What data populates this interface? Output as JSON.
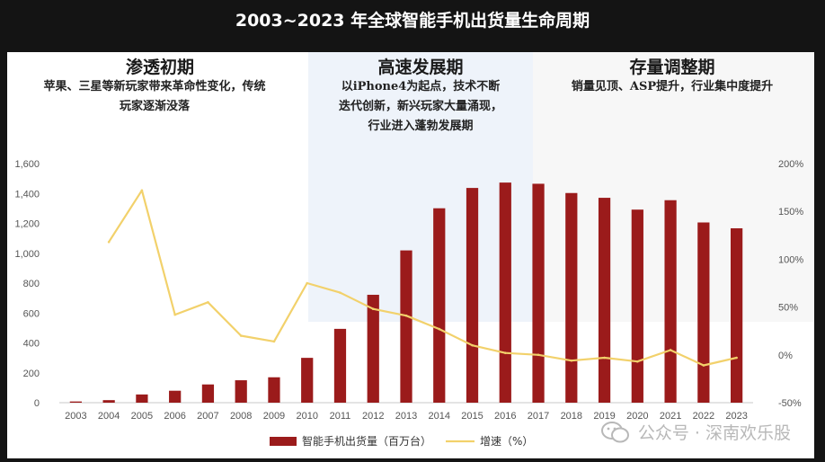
{
  "title": "2003~2023 年全球智能手机出货量生命周期",
  "phases": [
    {
      "title": "渗透初期",
      "desc": [
        "苹果、三星等新玩家带来革命性变化，传统",
        "玩家逐渐没落"
      ]
    },
    {
      "title": "高速发展期",
      "desc": [
        "以iPhone4为起点，技术不断",
        "迭代创新，新兴玩家大量涌现，",
        "行业进入蓬勃发展期"
      ]
    },
    {
      "title": "存量调整期",
      "desc": [
        "销量见顶、ASP提升，行业集中度提升"
      ]
    }
  ],
  "watermark": "公众号 · 深南欢乐股",
  "colors": {
    "bar": "#9b1b1b",
    "line": "#f2d16b",
    "phase_mid": "#eef3fa",
    "phase_right": "#f6f6f6"
  },
  "chart_data": {
    "type": "bar",
    "categories": [
      "2003",
      "2004",
      "2005",
      "2006",
      "2007",
      "2008",
      "2009",
      "2010",
      "2011",
      "2012",
      "2013",
      "2014",
      "2015",
      "2016",
      "2017",
      "2018",
      "2019",
      "2020",
      "2021",
      "2022",
      "2023"
    ],
    "series": [
      {
        "name": "智能手机出货量（百万台）",
        "type": "bar",
        "axis": "left",
        "values": [
          8,
          17,
          55,
          80,
          122,
          150,
          170,
          300,
          494,
          722,
          1019,
          1301,
          1437,
          1473,
          1465,
          1403,
          1371,
          1292,
          1355,
          1206,
          1167
        ]
      },
      {
        "name": "增速（%）",
        "type": "line",
        "axis": "right",
        "values": [
          null,
          118,
          172,
          42,
          55,
          20,
          14,
          75,
          65,
          48,
          41,
          27,
          10,
          2,
          0,
          -6,
          -3,
          -7,
          5,
          -11,
          -3
        ]
      }
    ],
    "y_left": {
      "min": 0,
      "max": 1600,
      "ticks": [
        "0",
        "200",
        "400",
        "600",
        "800",
        "1,000",
        "1,200",
        "1,400",
        "1,600"
      ]
    },
    "y_right": {
      "min": -50,
      "max": 200,
      "ticks": [
        "-50%",
        "0%",
        "50%",
        "100%",
        "150%",
        "200%"
      ]
    },
    "legend": [
      "智能手机出货量（百万台）",
      "增速（%）"
    ],
    "legend_position": "bottom"
  }
}
